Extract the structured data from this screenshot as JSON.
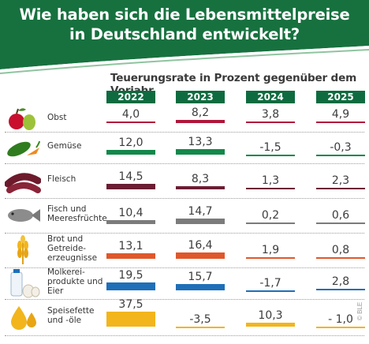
{
  "header": {
    "title_line1": "Wie haben sich die Lebensmittelpreise",
    "title_line2": "in Deutschland entwickelt?"
  },
  "credit": "© BLE",
  "chart_data": {
    "type": "table",
    "subtitle": "Teuerungsrate in Prozent gegenüber dem Vorjahr",
    "years": [
      "2022",
      "2023",
      "2024",
      "2025"
    ],
    "rows": [
      {
        "label": "Obst",
        "icon": "fruit-icon",
        "color": "#b0163a",
        "values": [
          "4,0",
          "8,2",
          "3,8",
          "4,9"
        ],
        "numbers": [
          4.0,
          8.2,
          3.8,
          4.9
        ]
      },
      {
        "label": "Gemüse",
        "icon": "vegetable-icon",
        "color": "#13884a",
        "values": [
          "12,0",
          "13,3",
          "-1,5",
          "-0,3"
        ],
        "numbers": [
          12.0,
          13.3,
          -1.5,
          -0.3
        ]
      },
      {
        "label": "Fleisch",
        "icon": "sausage-icon",
        "color": "#6b1d33",
        "values": [
          "14,5",
          "8,3",
          "1,3",
          "2,3"
        ],
        "numbers": [
          14.5,
          8.3,
          1.3,
          2.3
        ]
      },
      {
        "label": "Fisch und Meeresfrüchte",
        "icon": "fish-icon",
        "color": "#7b7b7b",
        "values": [
          "10,4",
          "14,7",
          "0,2",
          "0,6"
        ],
        "numbers": [
          10.4,
          14.7,
          0.2,
          0.6
        ]
      },
      {
        "label": "Brot und Getreide-erzeugnisse",
        "icon": "grain-icon",
        "color": "#e0572b",
        "values": [
          "13,1",
          "16,4",
          "1,9",
          "0,8"
        ],
        "numbers": [
          13.1,
          16.4,
          1.9,
          0.8
        ]
      },
      {
        "label": "Molkerei-produkte und Eier",
        "icon": "milk-egg-icon",
        "color": "#1f6fb8",
        "values": [
          "19,5",
          "15,7",
          "-1,7",
          "2,8"
        ],
        "numbers": [
          19.5,
          15.7,
          -1.7,
          2.8
        ]
      },
      {
        "label": "Speisefette und -öle",
        "icon": "oil-drops-icon",
        "color": "#f2b51c",
        "values": [
          "37,5",
          "-3,5",
          "10,3",
          "- 1,0"
        ],
        "numbers": [
          37.5,
          -3.5,
          10.3,
          -1.0
        ]
      }
    ],
    "label_lines": [
      [
        "Obst"
      ],
      [
        "Gemüse"
      ],
      [
        "Fleisch"
      ],
      [
        "Fisch und",
        "Meeresfrüchte"
      ],
      [
        "Brot und",
        "Getreide-",
        "erzeugnisse"
      ],
      [
        "Molkerei-",
        "produkte und",
        "Eier"
      ],
      [
        "Speisefette",
        "und -öle"
      ]
    ]
  }
}
